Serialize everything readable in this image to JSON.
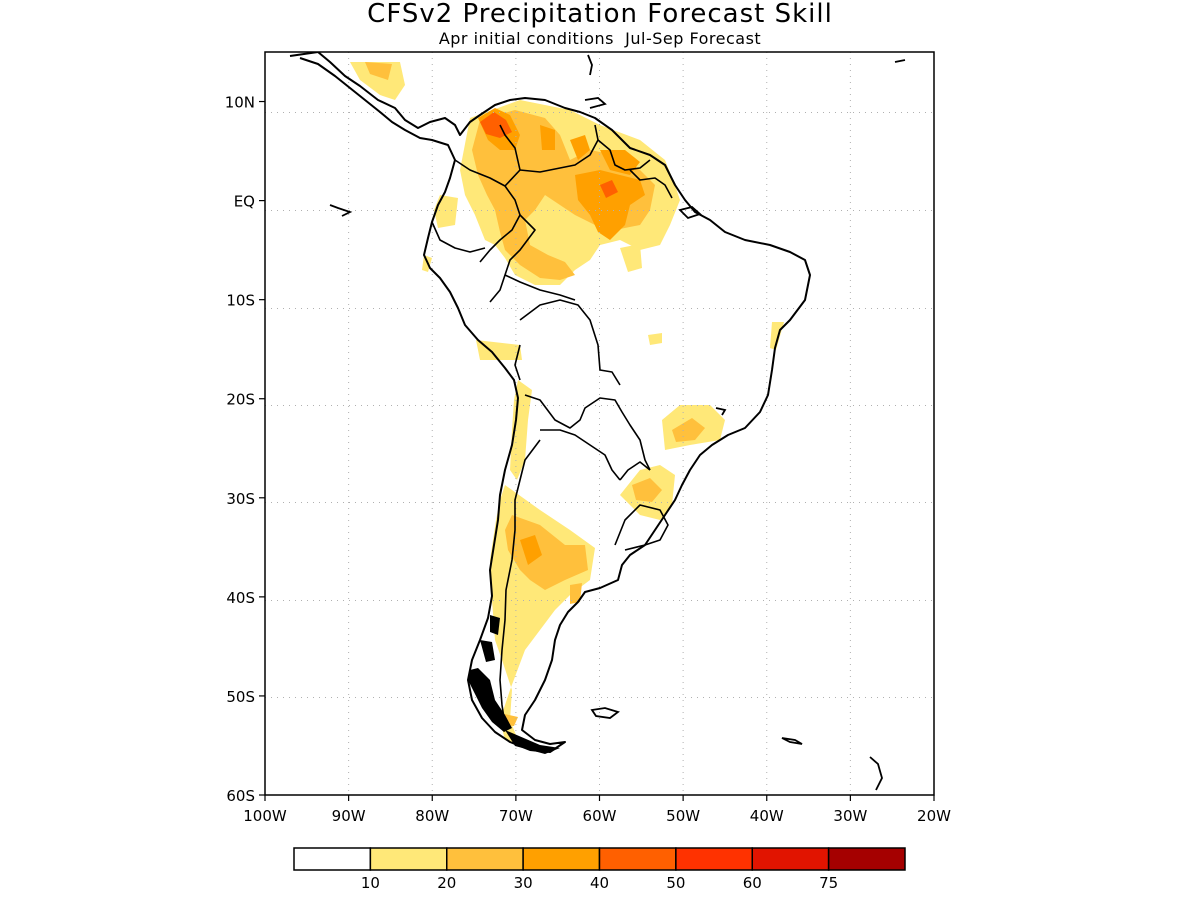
{
  "title": "CFSv2 Precipitation Forecast Skill",
  "subtitle": "Apr initial conditions  Jul-Sep Forecast",
  "map": {
    "lon_range": [
      -100,
      -20
    ],
    "lat_range": [
      -60,
      15
    ],
    "grid": "dotted",
    "lon_ticks": [
      "100W",
      "90W",
      "80W",
      "70W",
      "60W",
      "50W",
      "40W",
      "30W",
      "20W"
    ],
    "lat_ticks": [
      {
        "label": "10N",
        "lat": 10
      },
      {
        "label": "EQ",
        "lat": 0
      },
      {
        "label": "10S",
        "lat": -10
      },
      {
        "label": "20S",
        "lat": -20
      },
      {
        "label": "30S",
        "lat": -30
      },
      {
        "label": "40S",
        "lat": -40
      },
      {
        "label": "50S",
        "lat": -50
      },
      {
        "label": "60S",
        "lat": -60
      }
    ]
  },
  "colorbar": {
    "colors": [
      "#ffffff",
      "#ffe878",
      "#ffc03c",
      "#ffa000",
      "#ff6000",
      "#ff3200",
      "#e11400",
      "#a50000"
    ],
    "labels": [
      "10",
      "20",
      "30",
      "40",
      "50",
      "60",
      "75"
    ]
  }
}
